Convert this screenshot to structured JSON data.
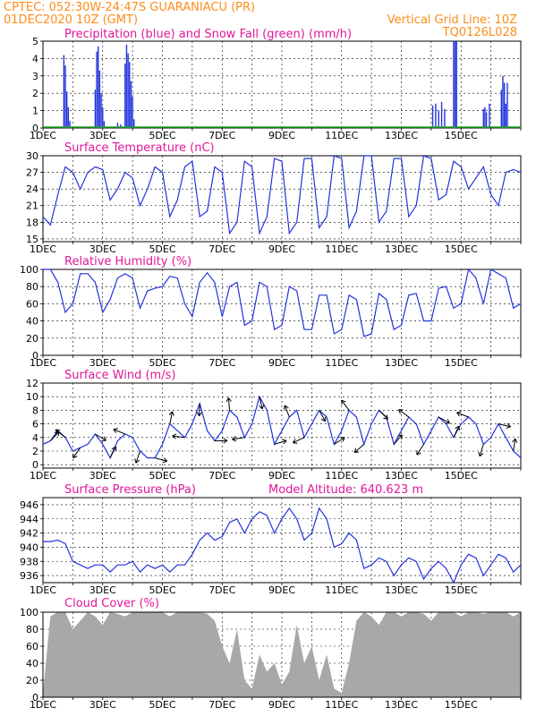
{
  "header": {
    "line1": "CPTEC:  052:30W-24:47S   GUARANIACU (PR)",
    "line2": "01DEC2020 10Z (GMT)",
    "right1": "Vertical Grid Line: 10Z",
    "right2": "TQ0126L028"
  },
  "x_labels": [
    "1DEC",
    "3DEC",
    "5DEC",
    "7DEC",
    "9DEC",
    "11DEC",
    "13DEC",
    "15DEC"
  ],
  "colors": {
    "header": "#ff8c1a",
    "title": "#e0179a",
    "series": "#2233dd",
    "snow": "#22aa22",
    "cloud": "#a8a8a8"
  },
  "chart_data": [
    {
      "type": "bar",
      "title": "Precipitation (blue) and Snow Fall (green) (mm/h)",
      "ylim": [
        0,
        5
      ],
      "yticks": [
        0,
        1,
        2,
        3,
        4,
        5
      ],
      "series": [
        {
          "name": "Precipitation",
          "x": [
            0.7,
            0.75,
            0.8,
            0.85,
            0.9,
            1.75,
            1.8,
            1.85,
            1.9,
            1.95,
            2.0,
            2.05,
            2.5,
            2.6,
            2.75,
            2.8,
            2.85,
            2.9,
            2.95,
            3.0,
            3.05,
            13.05,
            13.15,
            13.25,
            13.35,
            13.45,
            13.75,
            13.8,
            13.85,
            14.75,
            14.8,
            14.85,
            14.95,
            15.35,
            15.4,
            15.45,
            15.5,
            15.55
          ],
          "values": [
            4.2,
            3.6,
            2.1,
            1.2,
            0.4,
            2.2,
            4.4,
            4.7,
            3.3,
            2.0,
            1.2,
            0.4,
            0.3,
            0.2,
            3.7,
            4.8,
            4.3,
            3.8,
            2.7,
            1.8,
            0.5,
            1.3,
            1.4,
            1.0,
            1.5,
            1.1,
            5.0,
            5.0,
            5.0,
            1.1,
            1.2,
            0.9,
            1.4,
            2.2,
            3.0,
            2.6,
            1.4,
            2.6
          ]
        },
        {
          "name": "Snow Fall",
          "values": [
            0
          ]
        }
      ]
    },
    {
      "type": "line",
      "title": "Surface Temperature (nC)",
      "ylim": [
        14.5,
        30
      ],
      "yticks": [
        15,
        18,
        21,
        24,
        27,
        30
      ],
      "x": [
        0,
        0.25,
        0.5,
        0.75,
        1,
        1.25,
        1.5,
        1.75,
        2,
        2.25,
        2.5,
        2.75,
        3,
        3.25,
        3.5,
        3.75,
        4,
        4.25,
        4.5,
        4.75,
        5,
        5.25,
        5.5,
        5.75,
        6,
        6.25,
        6.5,
        6.75,
        7,
        7.25,
        7.5,
        7.75,
        8,
        8.25,
        8.5,
        8.75,
        9,
        9.25,
        9.5,
        9.75,
        10,
        10.25,
        10.5,
        10.75,
        11,
        11.25,
        11.5,
        11.75,
        12,
        12.25,
        12.5,
        12.75,
        13,
        13.25,
        13.5,
        13.75,
        14,
        14.25,
        14.5,
        14.75,
        15,
        15.25,
        15.5,
        15.75,
        16
      ],
      "values": [
        19,
        17.5,
        23,
        28,
        27,
        24,
        27,
        28,
        27.5,
        22,
        24,
        27,
        26,
        21,
        24,
        28,
        27,
        19,
        22,
        28,
        29,
        19,
        20,
        28,
        27,
        16,
        18,
        29,
        28,
        16,
        19,
        29.5,
        29,
        16,
        18,
        29.5,
        29.5,
        17,
        19,
        30,
        29.5,
        17,
        20,
        30,
        30,
        18,
        20,
        29.5,
        29.5,
        19,
        21,
        30,
        29.5,
        22,
        23,
        29,
        28,
        24,
        26,
        28,
        23,
        21,
        27,
        27.5,
        27
      ]
    },
    {
      "type": "line",
      "title": "Relative Humidity (%)",
      "ylim": [
        0,
        100
      ],
      "yticks": [
        0,
        20,
        40,
        60,
        80,
        100
      ],
      "x": [
        0,
        0.25,
        0.5,
        0.75,
        1,
        1.25,
        1.5,
        1.75,
        2,
        2.25,
        2.5,
        2.75,
        3,
        3.25,
        3.5,
        3.75,
        4,
        4.25,
        4.5,
        4.75,
        5,
        5.25,
        5.5,
        5.75,
        6,
        6.25,
        6.5,
        6.75,
        7,
        7.25,
        7.5,
        7.75,
        8,
        8.25,
        8.5,
        8.75,
        9,
        9.25,
        9.5,
        9.75,
        10,
        10.25,
        10.5,
        10.75,
        11,
        11.25,
        11.5,
        11.75,
        12,
        12.25,
        12.5,
        12.75,
        13,
        13.25,
        13.5,
        13.75,
        14,
        14.25,
        14.5,
        14.75,
        15,
        15.25,
        15.5,
        15.75,
        16
      ],
      "values": [
        100,
        100,
        85,
        50,
        60,
        95,
        95,
        85,
        50,
        65,
        90,
        95,
        90,
        55,
        75,
        78,
        80,
        92,
        90,
        60,
        45,
        85,
        96,
        85,
        45,
        80,
        85,
        35,
        40,
        85,
        80,
        30,
        35,
        80,
        75,
        30,
        30,
        70,
        70,
        25,
        30,
        70,
        65,
        22,
        25,
        72,
        65,
        30,
        35,
        70,
        72,
        40,
        40,
        78,
        80,
        55,
        60,
        100,
        90,
        60,
        100,
        95,
        90,
        55,
        60
      ]
    },
    {
      "type": "line",
      "title": "Surface Wind (m/s)",
      "ylim": [
        -0.5,
        12
      ],
      "yticks": [
        0,
        2,
        4,
        6,
        8,
        10,
        12
      ],
      "x": [
        0,
        0.25,
        0.5,
        0.75,
        1,
        1.25,
        1.5,
        1.75,
        2,
        2.25,
        2.5,
        2.75,
        3,
        3.25,
        3.5,
        3.75,
        4,
        4.25,
        4.5,
        4.75,
        5,
        5.25,
        5.5,
        5.75,
        6,
        6.25,
        6.5,
        6.75,
        7,
        7.25,
        7.5,
        7.75,
        8,
        8.25,
        8.5,
        8.75,
        9,
        9.25,
        9.5,
        9.75,
        10,
        10.25,
        10.5,
        10.75,
        11,
        11.25,
        11.5,
        11.75,
        12,
        12.25,
        12.5,
        12.75,
        13,
        13.25,
        13.5,
        13.75,
        14,
        14.25,
        14.5,
        14.75,
        15,
        15.25,
        15.5,
        15.75,
        16
      ],
      "values": [
        3,
        3.5,
        5,
        4,
        2,
        2.5,
        3,
        4.5,
        3,
        1,
        3.5,
        4.5,
        4,
        2,
        1,
        1,
        3,
        6,
        5,
        4,
        6,
        9,
        5,
        3.5,
        5,
        8,
        7,
        4,
        6,
        10,
        8,
        3,
        5,
        7,
        8,
        4,
        6,
        8,
        7,
        3,
        5,
        8,
        7,
        3,
        6,
        8,
        7,
        3,
        5,
        7,
        6,
        3,
        5,
        7,
        6,
        4,
        6,
        7,
        6,
        3,
        4,
        6,
        4,
        2,
        1
      ]
    },
    {
      "type": "line",
      "title": "Surface Pressure (hPa)",
      "subtitle": "Model Altitude: 640.623  m",
      "ylim": [
        935,
        947
      ],
      "yticks": [
        936,
        938,
        940,
        942,
        944,
        946
      ],
      "x": [
        0,
        0.25,
        0.5,
        0.75,
        1,
        1.25,
        1.5,
        1.75,
        2,
        2.25,
        2.5,
        2.75,
        3,
        3.25,
        3.5,
        3.75,
        4,
        4.25,
        4.5,
        4.75,
        5,
        5.25,
        5.5,
        5.75,
        6,
        6.25,
        6.5,
        6.75,
        7,
        7.25,
        7.5,
        7.75,
        8,
        8.25,
        8.5,
        8.75,
        9,
        9.25,
        9.5,
        9.75,
        10,
        10.25,
        10.5,
        10.75,
        11,
        11.25,
        11.5,
        11.75,
        12,
        12.25,
        12.5,
        12.75,
        13,
        13.25,
        13.5,
        13.75,
        14,
        14.25,
        14.5,
        14.75,
        15,
        15.25,
        15.5,
        15.75,
        16
      ],
      "values": [
        940.8,
        940.8,
        941,
        940.5,
        938,
        937.5,
        937,
        937.5,
        937.5,
        936.5,
        937.5,
        937.5,
        938,
        936.5,
        937.5,
        937,
        937.5,
        936.5,
        937.5,
        937.5,
        939,
        941,
        942,
        941,
        941.5,
        943.5,
        944,
        942,
        944,
        945,
        944.5,
        942,
        944,
        945.5,
        944,
        941,
        942,
        945.5,
        944,
        940,
        940.5,
        942,
        941,
        937,
        937.5,
        938.5,
        938,
        936,
        937.5,
        938.5,
        938,
        935.5,
        937,
        938,
        937,
        935,
        937.5,
        939,
        938.5,
        936,
        937.5,
        939,
        938.5,
        936.5,
        937.5
      ]
    },
    {
      "type": "area",
      "title": "Cloud Cover (%)",
      "ylim": [
        0,
        100
      ],
      "yticks": [
        0,
        20,
        40,
        60,
        80,
        100
      ],
      "x": [
        0,
        0.25,
        0.5,
        0.75,
        1,
        1.25,
        1.5,
        1.75,
        2,
        2.25,
        2.5,
        2.75,
        3,
        3.25,
        3.5,
        3.75,
        4,
        4.25,
        4.5,
        4.75,
        5,
        5.25,
        5.5,
        5.75,
        6,
        6.25,
        6.5,
        6.75,
        7,
        7.25,
        7.5,
        7.75,
        8,
        8.25,
        8.5,
        8.75,
        9,
        9.25,
        9.5,
        9.75,
        10,
        10.25,
        10.5,
        10.75,
        11,
        11.25,
        11.5,
        11.75,
        12,
        12.25,
        12.5,
        12.75,
        13,
        13.25,
        13.5,
        13.75,
        14,
        14.25,
        14.5,
        14.75,
        15,
        15.25,
        15.5,
        15.75,
        16
      ],
      "values": [
        5,
        95,
        100,
        100,
        80,
        90,
        100,
        95,
        85,
        100,
        98,
        95,
        100,
        100,
        100,
        100,
        100,
        95,
        100,
        100,
        100,
        100,
        98,
        90,
        60,
        40,
        80,
        20,
        10,
        50,
        30,
        40,
        15,
        30,
        85,
        40,
        60,
        20,
        50,
        10,
        5,
        40,
        90,
        100,
        95,
        85,
        100,
        100,
        95,
        100,
        100,
        98,
        90,
        100,
        100,
        100,
        95,
        100,
        100,
        98,
        100,
        100,
        100,
        95,
        100
      ]
    }
  ]
}
